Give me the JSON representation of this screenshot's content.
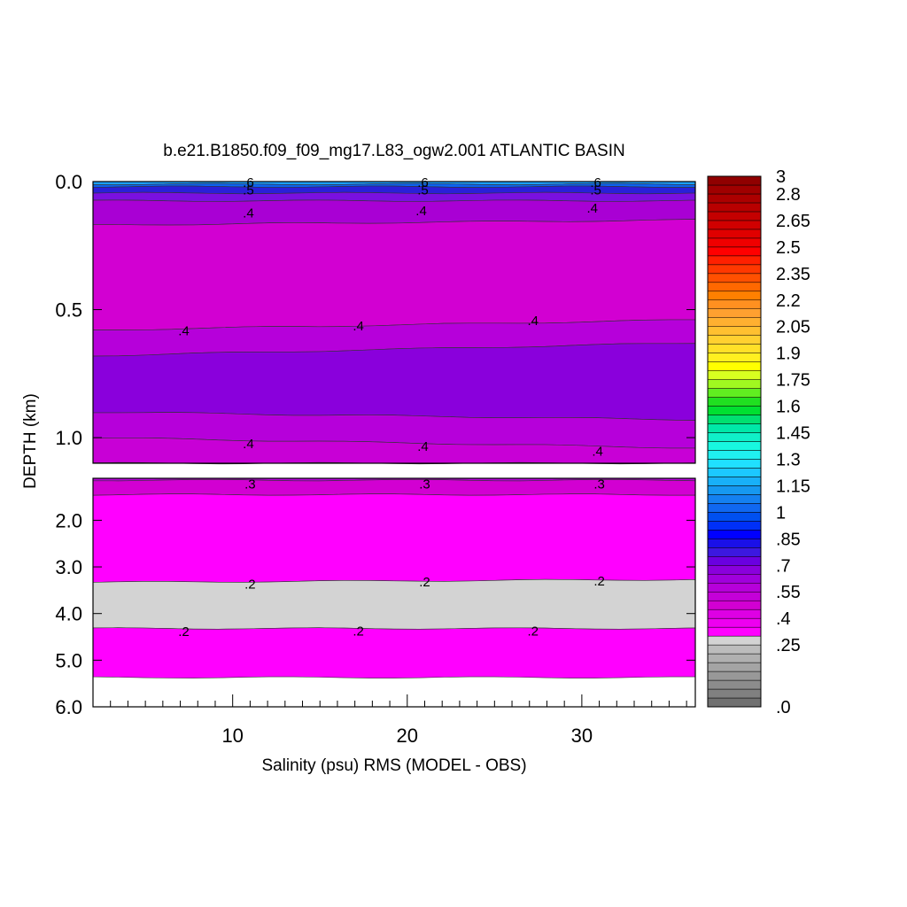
{
  "chart_data": {
    "type": "heatmap",
    "title": "b.e21.B1850.f09_f09_mg17.L83_ogw2.001 ATLANTIC BASIN",
    "xlabel": "Salinity (psu) RMS (MODEL - OBS)",
    "ylabel": "DEPTH (km)",
    "x_range": [
      2,
      36.5
    ],
    "x_ticks": [
      {
        "value": 10,
        "label": "10"
      },
      {
        "value": 20,
        "label": "20"
      },
      {
        "value": 30,
        "label": "30"
      }
    ],
    "upper_panel": {
      "ylim": [
        0,
        1.1
      ],
      "y_ticks": [
        {
          "value": 0.0,
          "label": "0.0"
        },
        {
          "value": 0.5,
          "label": "0.5"
        },
        {
          "value": 1.0,
          "label": "1.0"
        }
      ],
      "bands": [
        {
          "left": [
            0,
            0
          ],
          "right": [
            0,
            0
          ],
          "left_b": [
            0,
            0.01
          ],
          "right_b": [
            0,
            0.01
          ],
          "color": "#1da0ff"
        },
        {
          "top_left": 0.01,
          "top_right": 0.01,
          "bot_left": 0.02,
          "bot_right": 0.02,
          "color": "#0c63f0"
        },
        {
          "top_left": 0.02,
          "top_right": 0.02,
          "bot_left": 0.045,
          "bot_right": 0.045,
          "color": "#2a20d8"
        },
        {
          "top_left": 0.045,
          "top_right": 0.045,
          "bot_left": 0.075,
          "bot_right": 0.075,
          "color": "#7a10e0"
        },
        {
          "top_left": 0.075,
          "top_right": 0.075,
          "bot_left": 0.17,
          "bot_right": 0.15,
          "color": "#a900d4"
        },
        {
          "top_left": 0.17,
          "top_right": 0.15,
          "bot_left": 0.58,
          "bot_right": 0.54,
          "color": "#d200d2"
        },
        {
          "top_left": 0.58,
          "top_right": 0.54,
          "bot_left": 0.68,
          "bot_right": 0.63,
          "color": "#b600da"
        },
        {
          "top_left": 0.68,
          "top_right": 0.63,
          "bot_left": 0.9,
          "bot_right": 0.93,
          "color": "#8a00dc"
        },
        {
          "top_left": 0.9,
          "top_right": 0.93,
          "bot_left": 1.0,
          "bot_right": 1.04,
          "color": "#b600da"
        },
        {
          "top_left": 1.0,
          "top_right": 1.04,
          "bot_left": 1.1,
          "bot_right": 1.1,
          "color": "#c800d6"
        }
      ],
      "contour_labels": [
        {
          "x": 10.9,
          "y": 0.0,
          "text": ".6"
        },
        {
          "x": 10.9,
          "y": 0.03,
          "text": ".5"
        },
        {
          "x": 10.9,
          "y": 0.12,
          "text": ".4"
        },
        {
          "x": 20.9,
          "y": 0.0,
          "text": ".6"
        },
        {
          "x": 20.9,
          "y": 0.03,
          "text": ".5"
        },
        {
          "x": 20.8,
          "y": 0.11,
          "text": ".4"
        },
        {
          "x": 30.8,
          "y": 0.0,
          "text": ".6"
        },
        {
          "x": 30.8,
          "y": 0.03,
          "text": ".5"
        },
        {
          "x": 30.6,
          "y": 0.1,
          "text": ".4"
        },
        {
          "x": 7.2,
          "y": 0.58,
          "text": ".4"
        },
        {
          "x": 17.2,
          "y": 0.56,
          "text": ".4"
        },
        {
          "x": 27.2,
          "y": 0.54,
          "text": ".4"
        },
        {
          "x": 10.9,
          "y": 1.02,
          "text": ".4"
        },
        {
          "x": 20.9,
          "y": 1.03,
          "text": ".4"
        },
        {
          "x": 30.9,
          "y": 1.05,
          "text": ".4"
        }
      ]
    },
    "lower_panel": {
      "ylim": [
        1.1,
        6.0
      ],
      "y_ticks": [
        {
          "value": 2.0,
          "label": "2.0"
        },
        {
          "value": 3.0,
          "label": "3.0"
        },
        {
          "value": 4.0,
          "label": "4.0"
        },
        {
          "value": 5.0,
          "label": "5.0"
        },
        {
          "value": 6.0,
          "label": "6.0"
        }
      ],
      "bands": [
        {
          "top_left": 1.1,
          "top_right": 1.1,
          "bot_left": 1.14,
          "bot_right": 1.14,
          "color": "#b600da"
        },
        {
          "top_left": 1.14,
          "top_right": 1.14,
          "bot_left": 1.45,
          "bot_right": 1.45,
          "color": "#d200d2"
        },
        {
          "top_left": 1.45,
          "top_right": 1.45,
          "bot_left": 3.33,
          "bot_right": 3.27,
          "color": "#ff00ff"
        },
        {
          "top_left": 3.33,
          "top_right": 3.27,
          "bot_left": 4.32,
          "bot_right": 4.32,
          "color": "#d3d3d3"
        },
        {
          "top_left": 4.32,
          "top_right": 4.32,
          "bot_left": 5.37,
          "bot_right": 5.37,
          "color": "#ff00ff"
        }
      ],
      "contour_labels": [
        {
          "x": 11.0,
          "y": 1.2,
          "text": ".3"
        },
        {
          "x": 21.0,
          "y": 1.2,
          "text": ".3"
        },
        {
          "x": 31.0,
          "y": 1.2,
          "text": ".3"
        },
        {
          "x": 11.0,
          "y": 3.35,
          "text": ".2"
        },
        {
          "x": 21.0,
          "y": 3.3,
          "text": ".2"
        },
        {
          "x": 31.0,
          "y": 3.28,
          "text": ".2"
        },
        {
          "x": 7.2,
          "y": 4.37,
          "text": ".2"
        },
        {
          "x": 17.2,
          "y": 4.36,
          "text": ".2"
        },
        {
          "x": 27.2,
          "y": 4.36,
          "text": ".2"
        }
      ]
    },
    "colorbar": {
      "colors": [
        "#707070",
        "#808080",
        "#8c8c8c",
        "#989898",
        "#a4a4a4",
        "#b0b0b0",
        "#bcbcbc",
        "#d3d3d3",
        "#ff00ff",
        "#ee00f0",
        "#de00e4",
        "#d200d2",
        "#c400d8",
        "#b600da",
        "#a000dc",
        "#8a00dc",
        "#6a00e0",
        "#3c18e0",
        "#1a10e8",
        "#0000ff",
        "#0030f8",
        "#0050f0",
        "#1068f0",
        "#1480f0",
        "#1698f0",
        "#18b0f8",
        "#1cc8ff",
        "#20e0ff",
        "#20f0f0",
        "#18f8e0",
        "#10f0c8",
        "#00e8a8",
        "#00e070",
        "#00e030",
        "#20e020",
        "#60ee20",
        "#a0f820",
        "#d8ff20",
        "#ffff00",
        "#fff020",
        "#ffe028",
        "#ffd030",
        "#ffc030",
        "#ffb030",
        "#ffa030",
        "#ff9020",
        "#ff8000",
        "#ff6800",
        "#ff5000",
        "#ff3800",
        "#ff2000",
        "#ff0000",
        "#f00000",
        "#e00000",
        "#d00000",
        "#c40000",
        "#b80000",
        "#ac0000",
        "#a00000",
        "#900000"
      ],
      "labels": [
        {
          "index": 0,
          "text": ".0"
        },
        {
          "index": 7,
          "text": ".25"
        },
        {
          "index": 10,
          "text": ".4"
        },
        {
          "index": 13,
          "text": ".55"
        },
        {
          "index": 16,
          "text": ".7"
        },
        {
          "index": 19,
          "text": ".85"
        },
        {
          "index": 22,
          "text": "1"
        },
        {
          "index": 25,
          "text": "1.15"
        },
        {
          "index": 28,
          "text": "1.3"
        },
        {
          "index": 31,
          "text": "1.45"
        },
        {
          "index": 34,
          "text": "1.6"
        },
        {
          "index": 37,
          "text": "1.75"
        },
        {
          "index": 40,
          "text": "1.9"
        },
        {
          "index": 43,
          "text": "2.05"
        },
        {
          "index": 46,
          "text": "2.2"
        },
        {
          "index": 49,
          "text": "2.35"
        },
        {
          "index": 52,
          "text": "2.5"
        },
        {
          "index": 55,
          "text": "2.65"
        },
        {
          "index": 58,
          "text": "2.8"
        },
        {
          "index": 60,
          "text": "3"
        }
      ]
    }
  }
}
